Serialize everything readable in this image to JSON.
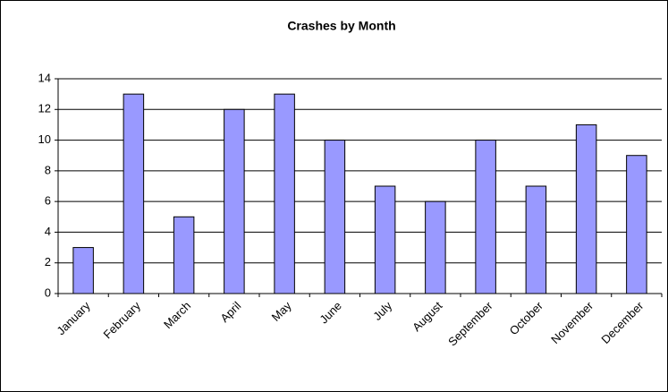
{
  "chart_data": {
    "type": "bar",
    "title": "Crashes by Month",
    "categories": [
      "January",
      "February",
      "March",
      "April",
      "May",
      "June",
      "July",
      "August",
      "September",
      "October",
      "November",
      "December"
    ],
    "values": [
      3,
      13,
      5,
      12,
      13,
      10,
      7,
      6,
      10,
      7,
      11,
      9
    ],
    "color": "#9999ff",
    "ylim": [
      0,
      14
    ],
    "yticks": [
      0,
      2,
      4,
      6,
      8,
      10,
      12,
      14
    ],
    "grid": true
  }
}
